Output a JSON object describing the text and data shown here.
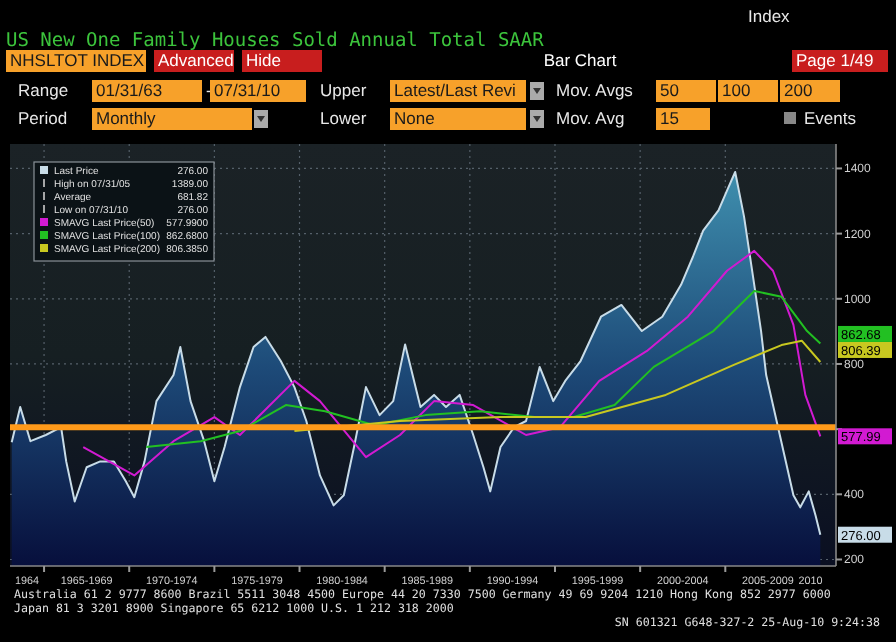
{
  "chart_data": {
    "type": "area",
    "title": "US New One Family Houses Sold Annual Total SAAR",
    "xlim": [
      1963,
      2011.5
    ],
    "xticks": [
      {
        "value": 1964,
        "label": "1964"
      },
      {
        "value": 1965,
        "label": null
      },
      {
        "value": 1967.5,
        "label": "1965-1969"
      },
      {
        "value": 1970,
        "label": null
      },
      {
        "value": 1972.5,
        "label": "1970-1974"
      },
      {
        "value": 1975,
        "label": null
      },
      {
        "value": 1977.5,
        "label": "1975-1979"
      },
      {
        "value": 1980,
        "label": null
      },
      {
        "value": 1982.5,
        "label": "1980-1984"
      },
      {
        "value": 1985,
        "label": null
      },
      {
        "value": 1987.5,
        "label": "1985-1989"
      },
      {
        "value": 1990,
        "label": null
      },
      {
        "value": 1992.5,
        "label": "1990-1994"
      },
      {
        "value": 1995,
        "label": null
      },
      {
        "value": 1997.5,
        "label": "1995-1999"
      },
      {
        "value": 2000,
        "label": null
      },
      {
        "value": 2002.5,
        "label": "2000-2004"
      },
      {
        "value": 2005,
        "label": null
      },
      {
        "value": 2007.5,
        "label": "2005-2009"
      },
      {
        "value": 2010,
        "label": "2010"
      }
    ],
    "ylim": [
      180,
      1475
    ],
    "yticks": [
      200,
      400,
      {
        "value": 600,
        "label": null
      },
      800,
      1000,
      1200,
      1400
    ],
    "grid": true,
    "legend": "top left",
    "ref_lines": [
      {
        "axis": "y",
        "value": 606,
        "label": null,
        "color": "#ff9a1a"
      }
    ],
    "series": [
      {
        "name": "Last Price",
        "color": "#c8dce8",
        "x": [
          1963.1,
          1963.6,
          1964.2,
          1965.1,
          1966.0,
          1966.3,
          1966.8,
          1967.5,
          1968.3,
          1969.1,
          1969.8,
          1970.3,
          1970.9,
          1971.6,
          1972.6,
          1973.0,
          1973.6,
          1974.4,
          1975.0,
          1975.6,
          1976.5,
          1977.3,
          1978.0,
          1978.9,
          1979.7,
          1980.4,
          1981.2,
          1982.0,
          1982.6,
          1983.2,
          1983.9,
          1984.7,
          1985.5,
          1986.2,
          1987.1,
          1987.9,
          1988.6,
          1989.4,
          1990.2,
          1990.8,
          1991.2,
          1991.8,
          1992.6,
          1993.3,
          1994.1,
          1994.9,
          1995.6,
          1996.5,
          1997.7,
          1998.9,
          2000.1,
          2001.3,
          2002.4,
          2003.1,
          2003.7,
          2004.6,
          2005.1,
          2005.58,
          2006.1,
          2006.7,
          2007.1,
          2007.4,
          2008.2,
          2009.0,
          2009.4,
          2009.9,
          2010.3,
          2010.58
        ],
        "values": [
          560,
          668,
          563,
          582,
          606,
          501,
          378,
          483,
          501,
          501,
          440,
          391,
          501,
          686,
          766,
          852,
          686,
          563,
          440,
          545,
          729,
          852,
          883,
          809,
          729,
          625,
          458,
          366,
          397,
          545,
          729,
          643,
          686,
          860,
          668,
          705,
          668,
          705,
          582,
          483,
          409,
          545,
          606,
          625,
          791,
          686,
          748,
          809,
          945,
          981,
          901,
          945,
          1043,
          1129,
          1209,
          1271,
          1332,
          1389,
          1252,
          1043,
          901,
          766,
          582,
          397,
          360,
          409,
          335,
          276
        ]
      },
      {
        "name": "SMAVG Last Price(50)",
        "type": "line",
        "color": "#d21ad2",
        "x": [
          1967.3,
          1970.3,
          1972.6,
          1975.0,
          1976.5,
          1979.7,
          1981.2,
          1983.9,
          1985.9,
          1987.9,
          1990.2,
          1993.3,
          1995.3,
          1997.6,
          2000.4,
          2002.8,
          2005.1,
          2006.7,
          2007.8,
          2009.0,
          2009.7,
          2010.58
        ],
        "values": [
          545,
          458,
          563,
          637,
          582,
          748,
          686,
          514,
          582,
          686,
          674,
          582,
          606,
          748,
          840,
          945,
          1086,
          1147,
          1086,
          920,
          705,
          578
        ]
      },
      {
        "name": "SMAVG Last Price(100)",
        "type": "line",
        "color": "#22c022",
        "x": [
          1971.0,
          1974.2,
          1976.5,
          1979.2,
          1981.5,
          1984.4,
          1987.4,
          1990.6,
          1993.8,
          1996.1,
          1998.5,
          2000.8,
          2004.3,
          2006.7,
          2008.3,
          2009.8,
          2010.58
        ],
        "values": [
          545,
          563,
          594,
          674,
          655,
          612,
          643,
          655,
          637,
          637,
          674,
          791,
          901,
          1024,
          1006,
          901,
          863
        ]
      },
      {
        "name": "SMAVG Last Price(200)",
        "type": "line",
        "color": "#c8c820",
        "x": [
          1979.7,
          1985.9,
          1991.8,
          1996.8,
          2001.5,
          2005.5,
          2008.3,
          2009.5,
          2010.58
        ],
        "values": [
          594,
          625,
          637,
          637,
          705,
          797,
          858,
          871,
          806
        ]
      }
    ],
    "annotations": [
      "Index",
      "NHSLTOT INDEX",
      "Advanced",
      "Hide",
      "Bar Chart",
      "Page 1/49",
      "Range",
      "01/31/63",
      "-",
      "07/31/10",
      "Upper",
      "Latest/Last Revi",
      "Mov. Avgs",
      "50",
      "100",
      "200",
      "Period",
      "Monthly",
      "Lower",
      "None",
      "Mov. Avg",
      "15",
      "Events",
      "276.00",
      "High on 07/31/05",
      "1389.00",
      "Average",
      "681.82",
      "Low on 07/31/10",
      "276.00",
      "577.9900",
      "862.6800",
      "806.3850",
      "276.00",
      "577.99",
      "862.68",
      "806.39",
      "Australia 61 2 9777 8600 Brazil 5511 3048 4500 Europe 44 20 7330 7500 Germany 49 69 9204 1210 Hong Kong 852 2977 6000",
      "Japan 81 3 3201 8900      Singapore 65 6212 1000      U.S. 1 212 318 2000",
      "SN 601321 G648-327-2 25-Aug-10  9:24:38"
    ]
  }
}
